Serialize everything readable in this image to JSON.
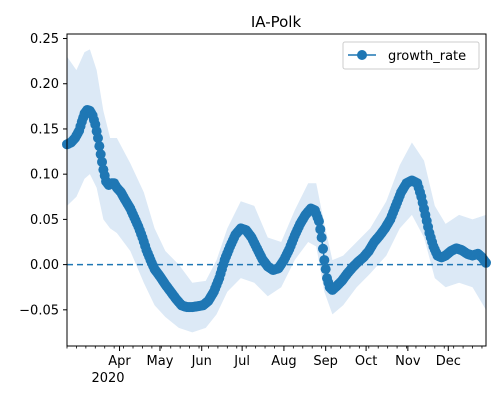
{
  "chart_data": {
    "type": "line",
    "title": "IA-Polk",
    "xlabel": "",
    "ylabel": "",
    "year_label": "2020",
    "x_range_days": [
      53,
      364
    ],
    "ylim": [
      -0.09,
      0.255
    ],
    "y_ticks": [
      -0.05,
      0.0,
      0.05,
      0.1,
      0.15,
      0.2,
      0.25
    ],
    "y_tick_labels": [
      "−0.05",
      "0.00",
      "0.05",
      "0.10",
      "0.15",
      "0.20",
      "0.25"
    ],
    "x_ticks": [
      {
        "day": 92,
        "label": "Apr"
      },
      {
        "day": 122,
        "label": "May"
      },
      {
        "day": 153,
        "label": "Jun"
      },
      {
        "day": 183,
        "label": "Jul"
      },
      {
        "day": 214,
        "label": "Aug"
      },
      {
        "day": 245,
        "label": "Sep"
      },
      {
        "day": 275,
        "label": "Oct"
      },
      {
        "day": 306,
        "label": "Nov"
      },
      {
        "day": 336,
        "label": "Dec"
      }
    ],
    "minor_tick_step_days": 7,
    "legend": {
      "position": "upper-right",
      "entries": [
        "growth_rate"
      ]
    },
    "reference_line": {
      "y": 0.0,
      "style": "dashed"
    },
    "colors": {
      "line": "#1f77b4",
      "band": "#dce9f6"
    },
    "series": [
      {
        "name": "growth_rate",
        "points": [
          [
            53,
            0.133
          ],
          [
            56,
            0.135
          ],
          [
            59,
            0.14
          ],
          [
            62,
            0.148
          ],
          [
            64,
            0.158
          ],
          [
            66,
            0.167
          ],
          [
            68,
            0.171
          ],
          [
            70,
            0.17
          ],
          [
            72,
            0.165
          ],
          [
            74,
            0.155
          ],
          [
            76,
            0.14
          ],
          [
            78,
            0.122
          ],
          [
            80,
            0.105
          ],
          [
            82,
            0.092
          ],
          [
            84,
            0.088
          ],
          [
            86,
            0.09
          ],
          [
            88,
            0.09
          ],
          [
            90,
            0.085
          ],
          [
            93,
            0.08
          ],
          [
            96,
            0.072
          ],
          [
            100,
            0.062
          ],
          [
            103,
            0.052
          ],
          [
            106,
            0.042
          ],
          [
            109,
            0.03
          ],
          [
            112,
            0.016
          ],
          [
            115,
            0.005
          ],
          [
            118,
            -0.005
          ],
          [
            122,
            -0.013
          ],
          [
            126,
            -0.022
          ],
          [
            130,
            -0.03
          ],
          [
            134,
            -0.038
          ],
          [
            138,
            -0.045
          ],
          [
            142,
            -0.047
          ],
          [
            146,
            -0.047
          ],
          [
            150,
            -0.046
          ],
          [
            154,
            -0.045
          ],
          [
            158,
            -0.04
          ],
          [
            162,
            -0.03
          ],
          [
            166,
            -0.015
          ],
          [
            170,
            0.005
          ],
          [
            174,
            0.02
          ],
          [
            178,
            0.033
          ],
          [
            182,
            0.04
          ],
          [
            186,
            0.038
          ],
          [
            190,
            0.03
          ],
          [
            194,
            0.018
          ],
          [
            198,
            0.006
          ],
          [
            202,
            -0.002
          ],
          [
            206,
            -0.006
          ],
          [
            210,
            -0.004
          ],
          [
            214,
            0.005
          ],
          [
            218,
            0.017
          ],
          [
            222,
            0.032
          ],
          [
            226,
            0.045
          ],
          [
            230,
            0.055
          ],
          [
            234,
            0.062
          ],
          [
            237,
            0.06
          ],
          [
            240,
            0.048
          ],
          [
            242,
            0.03
          ],
          [
            244,
            0.005
          ],
          [
            246,
            -0.015
          ],
          [
            248,
            -0.025
          ],
          [
            250,
            -0.028
          ],
          [
            253,
            -0.024
          ],
          [
            257,
            -0.018
          ],
          [
            261,
            -0.01
          ],
          [
            265,
            -0.003
          ],
          [
            269,
            0.003
          ],
          [
            273,
            0.008
          ],
          [
            277,
            0.015
          ],
          [
            281,
            0.025
          ],
          [
            285,
            0.032
          ],
          [
            289,
            0.04
          ],
          [
            293,
            0.05
          ],
          [
            297,
            0.065
          ],
          [
            301,
            0.08
          ],
          [
            305,
            0.09
          ],
          [
            309,
            0.093
          ],
          [
            313,
            0.09
          ],
          [
            316,
            0.075
          ],
          [
            319,
            0.055
          ],
          [
            322,
            0.035
          ],
          [
            325,
            0.02
          ],
          [
            328,
            0.01
          ],
          [
            331,
            0.008
          ],
          [
            334,
            0.01
          ],
          [
            338,
            0.015
          ],
          [
            342,
            0.018
          ],
          [
            346,
            0.016
          ],
          [
            350,
            0.012
          ],
          [
            354,
            0.01
          ],
          [
            358,
            0.012
          ],
          [
            361,
            0.008
          ],
          [
            364,
            0.002
          ]
        ],
        "band_lower": [
          [
            53,
            0.065
          ],
          [
            60,
            0.075
          ],
          [
            66,
            0.095
          ],
          [
            70,
            0.1
          ],
          [
            75,
            0.085
          ],
          [
            80,
            0.05
          ],
          [
            85,
            0.04
          ],
          [
            90,
            0.035
          ],
          [
            100,
            0.015
          ],
          [
            110,
            -0.02
          ],
          [
            118,
            -0.045
          ],
          [
            126,
            -0.058
          ],
          [
            136,
            -0.07
          ],
          [
            146,
            -0.075
          ],
          [
            156,
            -0.07
          ],
          [
            164,
            -0.055
          ],
          [
            172,
            -0.03
          ],
          [
            182,
            -0.015
          ],
          [
            192,
            -0.02
          ],
          [
            202,
            -0.035
          ],
          [
            212,
            -0.025
          ],
          [
            222,
            0.005
          ],
          [
            232,
            0.025
          ],
          [
            238,
            0.02
          ],
          [
            244,
            -0.03
          ],
          [
            250,
            -0.055
          ],
          [
            258,
            -0.045
          ],
          [
            268,
            -0.025
          ],
          [
            278,
            -0.01
          ],
          [
            290,
            0.01
          ],
          [
            300,
            0.04
          ],
          [
            309,
            0.055
          ],
          [
            318,
            0.03
          ],
          [
            326,
            -0.015
          ],
          [
            334,
            -0.025
          ],
          [
            344,
            -0.02
          ],
          [
            354,
            -0.025
          ],
          [
            364,
            -0.05
          ]
        ],
        "band_upper": [
          [
            53,
            0.23
          ],
          [
            60,
            0.215
          ],
          [
            66,
            0.235
          ],
          [
            70,
            0.238
          ],
          [
            75,
            0.215
          ],
          [
            80,
            0.17
          ],
          [
            85,
            0.14
          ],
          [
            90,
            0.14
          ],
          [
            100,
            0.112
          ],
          [
            110,
            0.08
          ],
          [
            118,
            0.04
          ],
          [
            126,
            0.015
          ],
          [
            136,
            0.0
          ],
          [
            146,
            -0.02
          ],
          [
            156,
            -0.018
          ],
          [
            164,
            0.005
          ],
          [
            172,
            0.04
          ],
          [
            182,
            0.07
          ],
          [
            192,
            0.065
          ],
          [
            202,
            0.03
          ],
          [
            212,
            0.025
          ],
          [
            222,
            0.06
          ],
          [
            232,
            0.09
          ],
          [
            238,
            0.09
          ],
          [
            244,
            0.045
          ],
          [
            250,
            0.005
          ],
          [
            258,
            0.01
          ],
          [
            268,
            0.025
          ],
          [
            278,
            0.04
          ],
          [
            290,
            0.07
          ],
          [
            300,
            0.11
          ],
          [
            309,
            0.135
          ],
          [
            318,
            0.115
          ],
          [
            326,
            0.065
          ],
          [
            334,
            0.045
          ],
          [
            344,
            0.055
          ],
          [
            354,
            0.05
          ],
          [
            364,
            0.055
          ]
        ]
      }
    ]
  }
}
